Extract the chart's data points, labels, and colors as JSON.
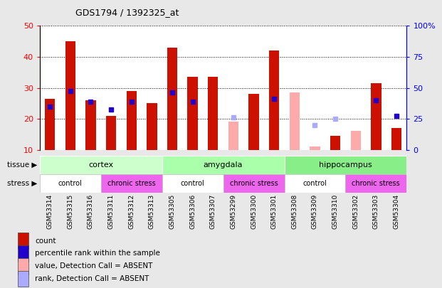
{
  "title": "GDS1794 / 1392325_at",
  "samples": [
    "GSM53314",
    "GSM53315",
    "GSM53316",
    "GSM53311",
    "GSM53312",
    "GSM53313",
    "GSM53305",
    "GSM53306",
    "GSM53307",
    "GSM53299",
    "GSM53300",
    "GSM53301",
    "GSM53308",
    "GSM53309",
    "GSM53310",
    "GSM53302",
    "GSM53303",
    "GSM53304"
  ],
  "count_values": [
    26.5,
    45.0,
    26.0,
    21.0,
    29.0,
    25.0,
    43.0,
    33.5,
    33.5,
    null,
    28.0,
    42.0,
    null,
    null,
    14.5,
    null,
    31.5,
    17.0
  ],
  "percentile_values": [
    24.0,
    29.0,
    25.5,
    23.0,
    25.5,
    null,
    28.5,
    25.5,
    null,
    null,
    null,
    26.5,
    null,
    null,
    null,
    null,
    26.0,
    21.0
  ],
  "absent_value_values": [
    null,
    null,
    null,
    null,
    null,
    null,
    null,
    null,
    null,
    19.0,
    null,
    null,
    28.5,
    11.0,
    null,
    16.0,
    null,
    null
  ],
  "absent_rank_values": [
    null,
    null,
    null,
    null,
    null,
    null,
    null,
    null,
    null,
    20.5,
    null,
    null,
    null,
    18.0,
    20.0,
    null,
    null,
    null
  ],
  "tissue_groups": [
    {
      "label": "cortex",
      "start": 0,
      "end": 6,
      "color": "#ccffcc"
    },
    {
      "label": "amygdala",
      "start": 6,
      "end": 12,
      "color": "#aaffaa"
    },
    {
      "label": "hippocampus",
      "start": 12,
      "end": 18,
      "color": "#88ee88"
    }
  ],
  "stress_groups": [
    {
      "label": "control",
      "start": 0,
      "end": 3,
      "color": "#ffffff"
    },
    {
      "label": "chronic stress",
      "start": 3,
      "end": 6,
      "color": "#ee66ee"
    },
    {
      "label": "control",
      "start": 6,
      "end": 9,
      "color": "#ffffff"
    },
    {
      "label": "chronic stress",
      "start": 9,
      "end": 12,
      "color": "#ee66ee"
    },
    {
      "label": "control",
      "start": 12,
      "end": 15,
      "color": "#ffffff"
    },
    {
      "label": "chronic stress",
      "start": 15,
      "end": 18,
      "color": "#ee66ee"
    }
  ],
  "ylim_left": [
    10,
    50
  ],
  "ylim_right": [
    0,
    100
  ],
  "yticks_left": [
    10,
    20,
    30,
    40,
    50
  ],
  "ytick_labels_right": [
    "0",
    "25",
    "50",
    "75",
    "100%"
  ],
  "bar_color": "#cc1100",
  "percentile_color": "#2200cc",
  "absent_value_color": "#ffaaaa",
  "absent_rank_color": "#aaaaff",
  "bar_width": 0.5,
  "legend_items": [
    {
      "label": "count",
      "color": "#cc1100"
    },
    {
      "label": "percentile rank within the sample",
      "color": "#2200cc"
    },
    {
      "label": "value, Detection Call = ABSENT",
      "color": "#ffaaaa"
    },
    {
      "label": "rank, Detection Call = ABSENT",
      "color": "#aaaaff"
    }
  ],
  "bg_color": "#e8e8e8",
  "plot_bg_color": "#ffffff"
}
